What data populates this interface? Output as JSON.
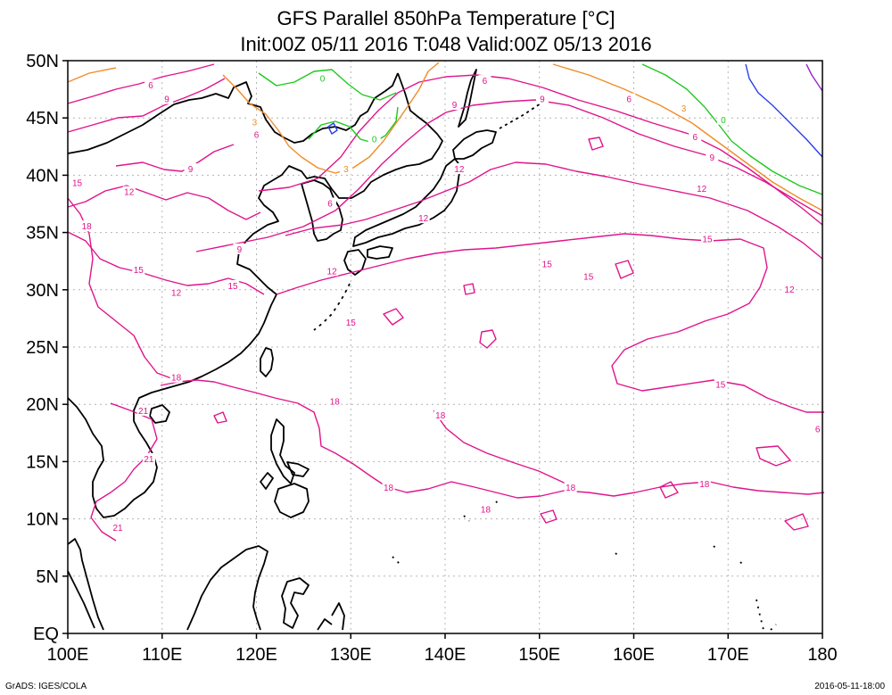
{
  "title": {
    "line1": "GFS Parallel 850hPa Temperature [°C]",
    "line2": "Init:00Z 05/11 2016 T:048 Valid:00Z 05/13 2016"
  },
  "credits": {
    "left": "GrADS: IGES/COLA",
    "right": "2016-05-11-18:00"
  },
  "map": {
    "lon_range": [
      100,
      180
    ],
    "lat_range": [
      0,
      50
    ],
    "lon_ticks": [
      100,
      110,
      120,
      130,
      140,
      150,
      160,
      170,
      180
    ],
    "lat_ticks": [
      0,
      5,
      10,
      15,
      20,
      25,
      30,
      35,
      40,
      45,
      50
    ],
    "lon_tick_labels": [
      "100E",
      "110E",
      "120E",
      "130E",
      "140E",
      "150E",
      "160E",
      "170E",
      "180"
    ],
    "lat_tick_labels": [
      "EQ",
      "5N",
      "10N",
      "15N",
      "20N",
      "25N",
      "30N",
      "35N",
      "40N",
      "45N",
      "50N"
    ],
    "grid": true,
    "contour_colors": {
      "21": "#e0148c",
      "18": "#e0148c",
      "15": "#e0148c",
      "12": "#e0148c",
      "9": "#e0148c",
      "6": "#e0148c",
      "3": "#f08c28",
      "0": "#1ec81e",
      "-3": "#2840e6",
      "-6": "#9628c8"
    },
    "contour_labels": [
      {
        "value": "18",
        "lon": 102.0,
        "lat": 35.5
      },
      {
        "value": "15",
        "lon": 101.0,
        "lat": 39.3
      },
      {
        "value": "12",
        "lon": 106.5,
        "lat": 38.5
      },
      {
        "value": "9",
        "lon": 110.5,
        "lat": 46.6
      },
      {
        "value": "6",
        "lon": 108.8,
        "lat": 47.8
      },
      {
        "value": "9",
        "lon": 113.0,
        "lat": 40.5
      },
      {
        "value": "6",
        "lon": 120.0,
        "lat": 43.5
      },
      {
        "value": "3",
        "lon": 119.8,
        "lat": 44.6
      },
      {
        "value": "0",
        "lon": 127.0,
        "lat": 48.4
      },
      {
        "value": "0",
        "lon": 132.5,
        "lat": 43.1
      },
      {
        "value": "3",
        "lon": 129.5,
        "lat": 40.5
      },
      {
        "value": "6",
        "lon": 127.8,
        "lat": 37.5
      },
      {
        "value": "9",
        "lon": 118.2,
        "lat": 33.5
      },
      {
        "value": "15",
        "lon": 107.5,
        "lat": 31.7
      },
      {
        "value": "12",
        "lon": 111.5,
        "lat": 29.7
      },
      {
        "value": "15",
        "lon": 117.5,
        "lat": 30.3
      },
      {
        "value": "12",
        "lon": 128.0,
        "lat": 31.6
      },
      {
        "value": "12",
        "lon": 137.7,
        "lat": 36.2
      },
      {
        "value": "15",
        "lon": 130.0,
        "lat": 27.1
      },
      {
        "value": "18",
        "lon": 111.5,
        "lat": 22.3
      },
      {
        "value": "21",
        "lon": 108.0,
        "lat": 19.4
      },
      {
        "value": "21",
        "lon": 108.6,
        "lat": 15.2
      },
      {
        "value": "21",
        "lon": 105.3,
        "lat": 9.2
      },
      {
        "value": "18",
        "lon": 128.3,
        "lat": 20.2
      },
      {
        "value": "18",
        "lon": 139.5,
        "lat": 19.0
      },
      {
        "value": "18",
        "lon": 134.0,
        "lat": 12.7
      },
      {
        "value": "18",
        "lon": 144.3,
        "lat": 10.8
      },
      {
        "value": "18",
        "lon": 153.3,
        "lat": 12.7
      },
      {
        "value": "18",
        "lon": 167.5,
        "lat": 13.0
      },
      {
        "value": "15",
        "lon": 150.8,
        "lat": 32.2
      },
      {
        "value": "15",
        "lon": 155.2,
        "lat": 31.1
      },
      {
        "value": "15",
        "lon": 167.8,
        "lat": 34.4
      },
      {
        "value": "15",
        "lon": 169.2,
        "lat": 21.7
      },
      {
        "value": "12",
        "lon": 141.5,
        "lat": 40.5
      },
      {
        "value": "12",
        "lon": 167.2,
        "lat": 38.8
      },
      {
        "value": "12",
        "lon": 176.5,
        "lat": 30.0
      },
      {
        "value": "9",
        "lon": 141.0,
        "lat": 46.1
      },
      {
        "value": "9",
        "lon": 150.3,
        "lat": 46.6
      },
      {
        "value": "9",
        "lon": 168.3,
        "lat": 41.5
      },
      {
        "value": "6",
        "lon": 144.2,
        "lat": 48.2
      },
      {
        "value": "6",
        "lon": 159.5,
        "lat": 46.6
      },
      {
        "value": "6",
        "lon": 166.5,
        "lat": 43.3
      },
      {
        "value": "6",
        "lon": 179.5,
        "lat": 17.8
      },
      {
        "value": "3",
        "lon": 165.3,
        "lat": 45.8
      },
      {
        "value": "0",
        "lon": 169.5,
        "lat": 44.8
      }
    ]
  }
}
